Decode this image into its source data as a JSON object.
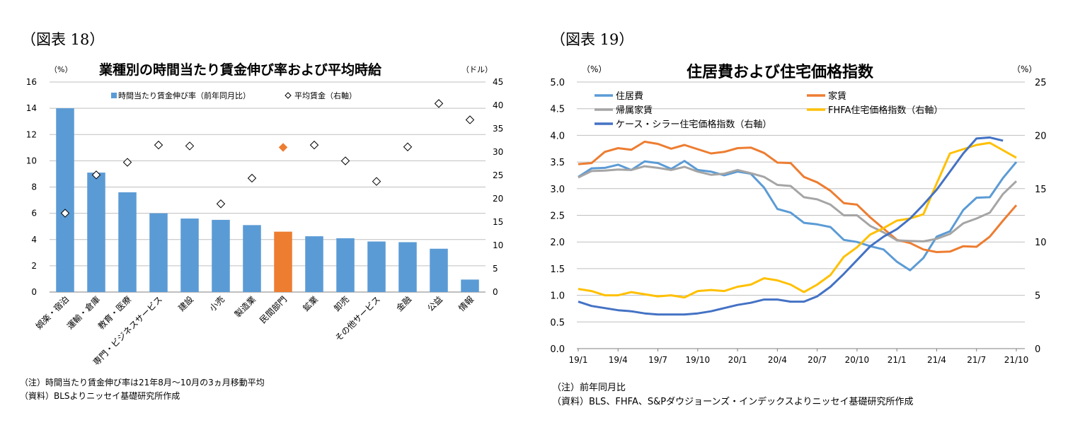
{
  "left_figure": {
    "figure_label": "（図表 18）",
    "title": "業種別の時間当たり賃金伸び率および平均時給",
    "note1": "（注）時間当たり賃金伸び率は21年8月～10月の3ヵ月移動平均",
    "note2": "（資料）BLSよりニッセイ基礎研究所作成"
  },
  "right_figure": {
    "figure_label": "（図表 19）",
    "title": "住居費および住宅価格指数",
    "note1": "（注）前年同月比",
    "note2": "（資料）BLS、FHFA、S&Pダウジョーンズ・インデックスよりニッセイ基礎研究所作成"
  },
  "chart_data": [
    {
      "type": "bar",
      "title": "業種別の時間当たり賃金伸び率および平均時給",
      "left_axis_unit": "（%）",
      "right_axis_unit": "（ドル）",
      "ylim": [
        0,
        16
      ],
      "yticks": [
        "0",
        "2",
        "4",
        "6",
        "8",
        "10",
        "12",
        "14",
        "16"
      ],
      "y2lim": [
        0,
        45
      ],
      "y2ticks": [
        "0",
        "5",
        "10",
        "15",
        "20",
        "25",
        "30",
        "35",
        "40",
        "45"
      ],
      "categories": [
        "娯楽・宿泊",
        "運輸・倉庫",
        "教育・医療",
        "専門・ビジネスサービス",
        "建設",
        "小売",
        "製造業",
        "民間部門",
        "鉱業",
        "卸売",
        "その他サービス",
        "金融",
        "公益",
        "情報"
      ],
      "highlight_category": "民間部門",
      "legend": {
        "bar": "時間当たり賃金伸び率（前年同月比）",
        "marker": "平均賃金（右軸）"
      },
      "series": [
        {
          "name": "時間当たり賃金伸び率（前年同月比）",
          "axis": "left",
          "values": [
            14.0,
            9.1,
            7.6,
            6.0,
            5.6,
            5.5,
            5.1,
            4.6,
            4.25,
            4.1,
            3.85,
            3.8,
            3.3,
            0.95
          ]
        },
        {
          "name": "平均賃金（右軸）",
          "axis": "right",
          "values": [
            16.9,
            25.1,
            27.8,
            31.5,
            31.3,
            18.9,
            24.4,
            31.0,
            31.5,
            28.1,
            23.7,
            31.1,
            40.4,
            36.9
          ]
        }
      ],
      "colors": {
        "bar": "#5b9bd5",
        "highlight": "#ed7d31"
      }
    },
    {
      "type": "line",
      "title": "住居費および住宅価格指数",
      "left_axis_unit": "（%）",
      "right_axis_unit": "（%）",
      "ylim": [
        0,
        5
      ],
      "yticks": [
        "0.0",
        "0.5",
        "1.0",
        "1.5",
        "2.0",
        "2.5",
        "3.0",
        "3.5",
        "4.0",
        "4.5",
        "5.0"
      ],
      "y2lim": [
        0,
        25
      ],
      "y2ticks": [
        "0",
        "5",
        "10",
        "15",
        "20",
        "25"
      ],
      "xtick_labels": [
        "19/1",
        "19/4",
        "19/7",
        "19/10",
        "20/1",
        "20/4",
        "20/7",
        "20/10",
        "21/1",
        "21/4",
        "21/7",
        "21/10"
      ],
      "x_points": [
        "19/1",
        "19/2",
        "19/3",
        "19/4",
        "19/5",
        "19/6",
        "19/7",
        "19/8",
        "19/9",
        "19/10",
        "19/11",
        "19/12",
        "20/1",
        "20/2",
        "20/3",
        "20/4",
        "20/5",
        "20/6",
        "20/7",
        "20/8",
        "20/9",
        "20/10",
        "20/11",
        "20/12",
        "21/1",
        "21/2",
        "21/3",
        "21/4",
        "21/5",
        "21/6",
        "21/7",
        "21/8",
        "21/9",
        "21/10"
      ],
      "series": [
        {
          "name": "住居費",
          "axis": "left",
          "color": "#5b9bd5",
          "values": [
            3.22,
            3.38,
            3.39,
            3.45,
            3.35,
            3.51,
            3.48,
            3.37,
            3.52,
            3.35,
            3.32,
            3.25,
            3.32,
            3.28,
            3.02,
            2.62,
            2.55,
            2.36,
            2.33,
            2.28,
            2.04,
            2.0,
            1.92,
            1.86,
            1.63,
            1.47,
            1.7,
            2.1,
            2.2,
            2.6,
            2.83,
            2.84,
            3.2,
            3.5
          ]
        },
        {
          "name": "家賃",
          "axis": "left",
          "color": "#ed7d31",
          "values": [
            3.46,
            3.48,
            3.69,
            3.76,
            3.73,
            3.88,
            3.84,
            3.75,
            3.82,
            3.74,
            3.66,
            3.69,
            3.76,
            3.77,
            3.67,
            3.49,
            3.48,
            3.22,
            3.12,
            2.96,
            2.73,
            2.7,
            2.46,
            2.25,
            2.04,
            1.98,
            1.86,
            1.81,
            1.82,
            1.92,
            1.91,
            2.1,
            2.4,
            2.69
          ]
        },
        {
          "name": "帰属家賃",
          "axis": "left",
          "color": "#a5a5a5",
          "values": [
            3.21,
            3.33,
            3.34,
            3.36,
            3.35,
            3.42,
            3.39,
            3.35,
            3.41,
            3.32,
            3.26,
            3.28,
            3.35,
            3.29,
            3.22,
            3.07,
            3.05,
            2.84,
            2.8,
            2.7,
            2.5,
            2.5,
            2.3,
            2.18,
            2.03,
            2.02,
            2.01,
            2.06,
            2.15,
            2.35,
            2.44,
            2.55,
            2.9,
            3.14
          ]
        },
        {
          "name": "FHFA住宅価格指数（右軸）",
          "axis": "right",
          "color": "#ffc000",
          "values": [
            5.6,
            5.4,
            5.0,
            5.0,
            5.3,
            5.1,
            4.9,
            5.0,
            4.8,
            5.4,
            5.5,
            5.4,
            5.8,
            6.0,
            6.6,
            6.4,
            6.0,
            5.3,
            6.0,
            6.9,
            8.6,
            9.5,
            10.7,
            11.3,
            12.0,
            12.2,
            12.6,
            15.5,
            18.3,
            18.7,
            19.1,
            19.3,
            18.6,
            17.9
          ]
        },
        {
          "name": "ケース・シラー住宅価格指数（右軸）",
          "axis": "right",
          "color": "#4472c4",
          "values": [
            4.4,
            4.0,
            3.8,
            3.6,
            3.5,
            3.3,
            3.2,
            3.2,
            3.2,
            3.3,
            3.5,
            3.8,
            4.1,
            4.3,
            4.6,
            4.6,
            4.4,
            4.4,
            4.9,
            5.8,
            7.0,
            8.3,
            9.6,
            10.5,
            11.2,
            12.2,
            13.5,
            14.9,
            16.6,
            18.3,
            19.7,
            19.8,
            19.5
          ]
        }
      ]
    }
  ]
}
